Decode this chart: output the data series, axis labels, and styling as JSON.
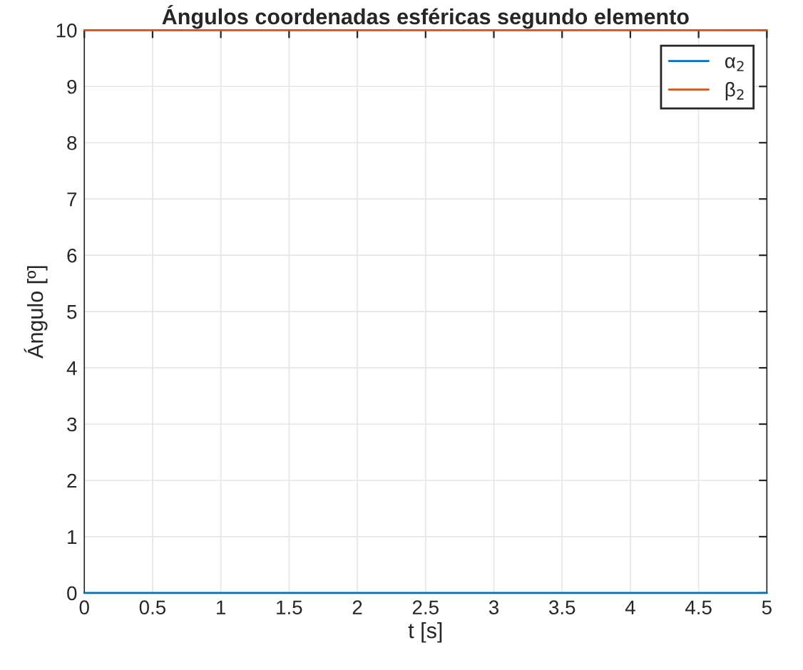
{
  "chart_data": {
    "type": "line",
    "title": "Ángulos coordenadas esféricas segundo elemento",
    "xlabel": "t [s]",
    "ylabel": "Ángulo [º]",
    "x": [
      0,
      5
    ],
    "series": [
      {
        "name": "α$_{2}$",
        "color": "#0072bd",
        "values": [
          0,
          0
        ]
      },
      {
        "name": "β$_{2}$",
        "color": "#d95319",
        "values": [
          10,
          10
        ]
      }
    ],
    "xlim": [
      0,
      5
    ],
    "xticks": [
      0,
      0.5,
      1,
      1.5,
      2,
      2.5,
      3,
      3.5,
      4,
      4.5,
      5
    ],
    "ylim": [
      0,
      10
    ],
    "yticks": [
      0,
      1,
      2,
      3,
      4,
      5,
      6,
      7,
      8,
      9,
      10
    ],
    "grid": true,
    "legend": "top right",
    "line_style": "solid",
    "marker": "none"
  }
}
